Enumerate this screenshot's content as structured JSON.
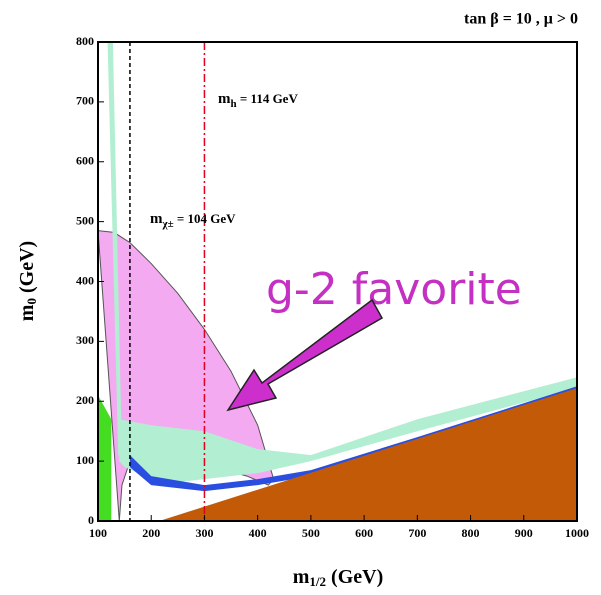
{
  "chart_data": {
    "type": "region",
    "title": "tan β = 10 ,  μ > 0",
    "x_label": {
      "main": "m",
      "sub": "1/2",
      "rest": " (GeV)"
    },
    "y_label": {
      "main": "m",
      "sub": "0",
      "rest": " (GeV)"
    },
    "xlim": [
      100,
      1000
    ],
    "ylim": [
      0,
      800
    ],
    "xticks": [
      100,
      200,
      300,
      400,
      500,
      600,
      700,
      800,
      900,
      1000
    ],
    "yticks": [
      0,
      100,
      200,
      300,
      400,
      500,
      600,
      700,
      800
    ],
    "annotations": {
      "mh": {
        "main": "m",
        "sub": "h",
        "rest": " = 114 GeV"
      },
      "chargino": {
        "main": "m",
        "sub": "χ±",
        "rest": " = 104 GeV"
      },
      "g2": "g-2 favorite"
    },
    "regions": [
      {
        "color": "#f4aaf0",
        "x": [
          100,
          130,
          160,
          200,
          250,
          300,
          350,
          400,
          430,
          420,
          380,
          300,
          250,
          200,
          160,
          145,
          140
        ],
        "y": [
          485,
          482,
          465,
          430,
          380,
          320,
          250,
          160,
          70,
          60,
          75,
          95,
          100,
          95,
          100,
          60,
          0
        ]
      },
      {
        "color": "#b2eed2",
        "x": [
          140,
          200,
          300,
          400,
          500,
          700,
          1000,
          1000,
          700,
          500,
          400,
          300,
          250,
          200,
          150,
          140
        ],
        "y": [
          170,
          160,
          150,
          120,
          110,
          170,
          240,
          222,
          150,
          100,
          80,
          70,
          65,
          70,
          90,
          100
        ]
      },
      {
        "color": "#b2eed2",
        "x": [
          118,
          128,
          145,
          138
        ],
        "y": [
          800,
          800,
          110,
          110
        ]
      },
      {
        "color": "#2a4ee0",
        "x": [
          160,
          200,
          300,
          400,
          500,
          700,
          1000,
          1000,
          700,
          500,
          400,
          300,
          200,
          160
        ],
        "y": [
          110,
          75,
          60,
          70,
          85,
          140,
          225,
          215,
          125,
          75,
          60,
          50,
          60,
          90
        ]
      },
      {
        "color": "#c25a08",
        "x": [
          215,
          1000,
          1000
        ],
        "y": [
          0,
          222,
          0
        ]
      },
      {
        "color": "#44dd22",
        "x": [
          100,
          125,
          125,
          100
        ],
        "y": [
          0,
          0,
          170,
          210
        ]
      }
    ],
    "lines": [
      {
        "x": 160,
        "color": "#000000",
        "dash": "4 3"
      },
      {
        "x": 300,
        "color": "#e00020",
        "dash": "8 3 2 3"
      }
    ]
  }
}
